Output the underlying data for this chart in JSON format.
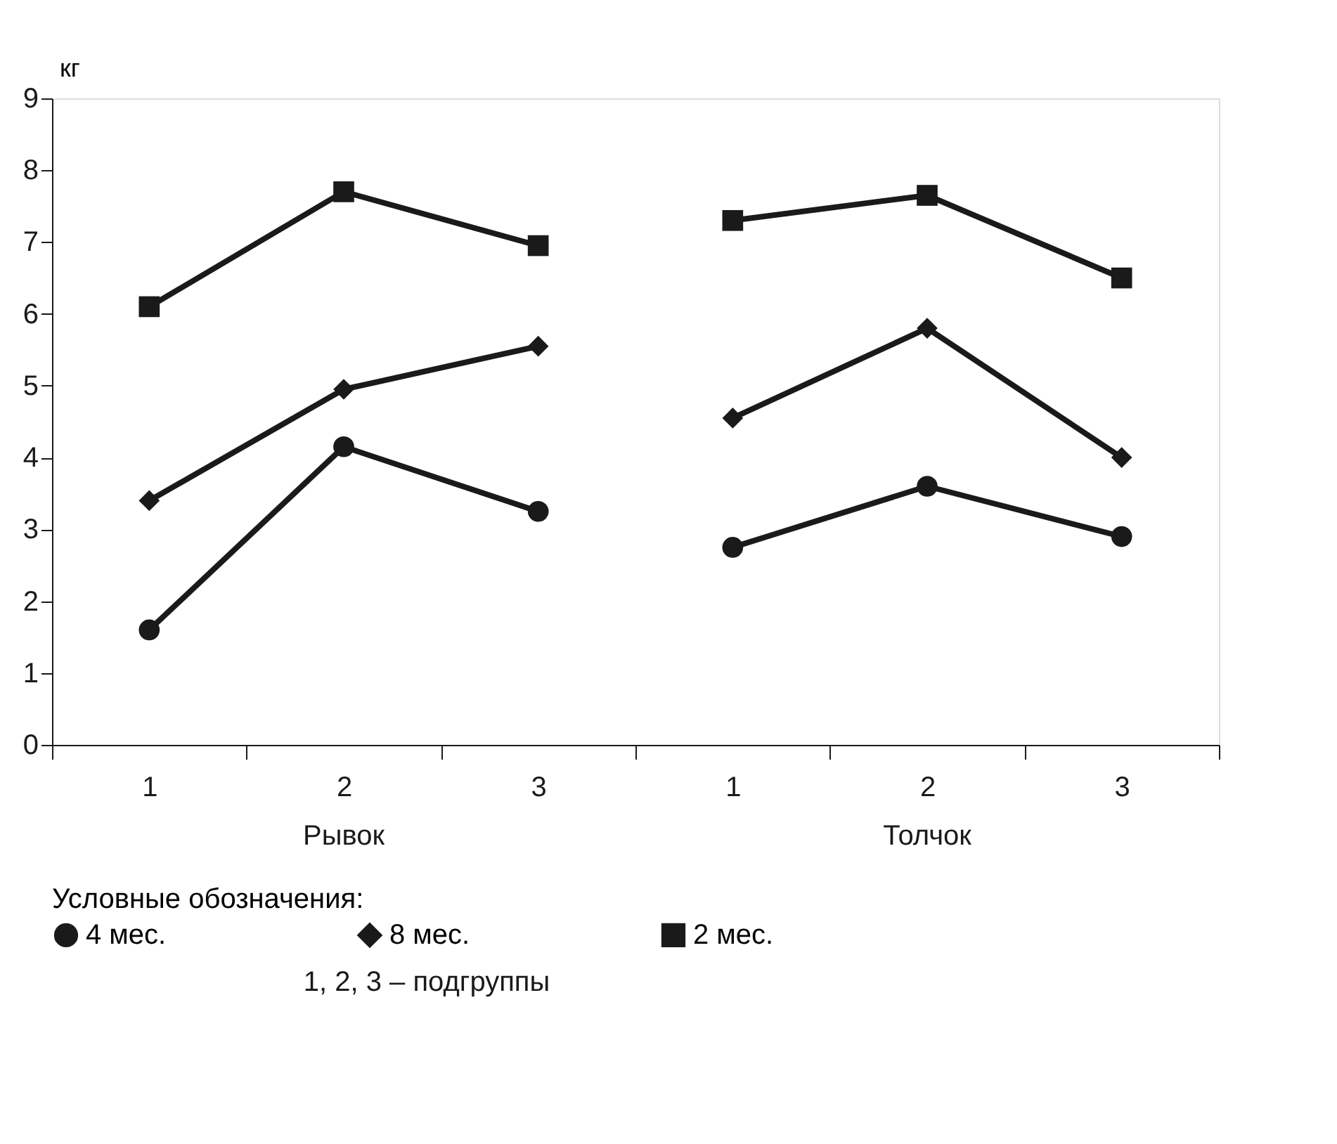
{
  "chart_data": {
    "type": "line",
    "ylabel": "кг",
    "legend_title": "Условные обозначения:",
    "categories": [
      "1",
      "2",
      "3",
      "1",
      "2",
      "3"
    ],
    "series": [
      {
        "name": "4 мес.",
        "color": "#1a1a1a",
        "marker": "circle",
        "values": [
          1.6,
          4.15,
          3.25,
          2.75,
          3.6,
          2.9
        ]
      },
      {
        "name": "8 мес.",
        "color": "#1a1a1a",
        "marker": "diamond",
        "values": [
          3.4,
          4.95,
          5.55,
          4.55,
          5.8,
          4.0
        ]
      },
      {
        "name": "2 мес.",
        "color": "#1a1a1a",
        "marker": "square",
        "values": [
          6.1,
          7.7,
          6.95,
          7.3,
          7.65,
          6.5
        ]
      }
    ],
    "ylim": [
      0,
      9
    ],
    "yticks": [
      0,
      1,
      2,
      3,
      4,
      5,
      6,
      7,
      8,
      9
    ],
    "grid": false,
    "legend": "bottom",
    "annotations": [
      "Рывок",
      "Толчок",
      "1, 2, 3 – подгруппы"
    ]
  }
}
